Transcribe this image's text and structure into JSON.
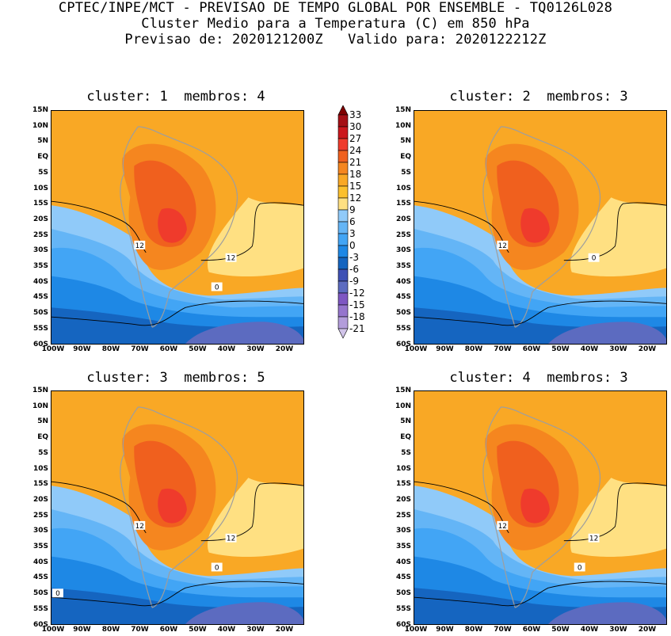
{
  "header": {
    "line1": "CPTEC/INPE/MCT - PREVISAO DE TEMPO GLOBAL POR ENSEMBLE - TQ0126L028",
    "line2": "Cluster Medio para a Temperatura (C) em 850 hPa",
    "line3": "Previsao de: 2020121200Z   Valido para: 2020122212Z"
  },
  "panels": [
    {
      "title": "cluster: 1  membros: 4",
      "contour_labels": [
        "12",
        "12",
        "0"
      ]
    },
    {
      "title": "cluster: 2  membros: 3",
      "contour_labels": [
        "12",
        "0"
      ]
    },
    {
      "title": "cluster: 3  membros: 5",
      "contour_labels": [
        "12",
        "12",
        "0",
        "0"
      ]
    },
    {
      "title": "cluster: 4  membros: 3",
      "contour_labels": [
        "12",
        "12",
        "0"
      ]
    }
  ],
  "lat_labels": [
    "15N",
    "10N",
    "5N",
    "EQ",
    "5S",
    "10S",
    "15S",
    "20S",
    "25S",
    "30S",
    "35S",
    "40S",
    "45S",
    "50S",
    "55S",
    "60S"
  ],
  "lon_labels": [
    "100W",
    "90W",
    "80W",
    "70W",
    "60W",
    "50W",
    "40W",
    "30W",
    "20W"
  ],
  "colorbar": {
    "levels": [
      "33",
      "30",
      "27",
      "24",
      "21",
      "18",
      "15",
      "12",
      "9",
      "6",
      "3",
      "0",
      "-3",
      "-6",
      "-9",
      "-12",
      "-15",
      "-18",
      "-21"
    ],
    "colors": [
      "#7f0000",
      "#a50f15",
      "#cb181d",
      "#ef3b2c",
      "#f0601e",
      "#f5861f",
      "#f9a825",
      "#fbc02d",
      "#ffe082",
      "#90caf9",
      "#64b5f6",
      "#42a5f5",
      "#1e88e5",
      "#1565c0",
      "#3f51b5",
      "#5c6bc0",
      "#7e57c2",
      "#9575cd",
      "#b39ddb",
      "#d1c4e9"
    ]
  }
}
